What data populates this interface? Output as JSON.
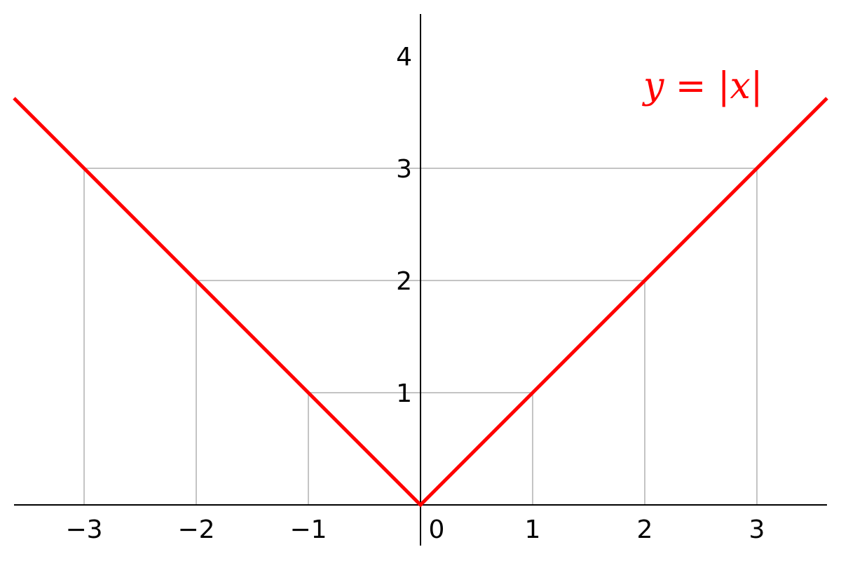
{
  "chart_data": {
    "type": "line",
    "title": "",
    "xlabel": "",
    "ylabel": "",
    "xlim": [
      -3.625,
      3.625
    ],
    "ylim": [
      -0.3625,
      4.375
    ],
    "x_ticks": [
      -3,
      -2,
      -1,
      0,
      1,
      2,
      3
    ],
    "x_tick_labels": [
      "−3",
      "−2",
      "−1",
      "0",
      "1",
      "2",
      "3"
    ],
    "y_ticks": [
      1,
      2,
      3,
      4
    ],
    "y_tick_labels": [
      "1",
      "2",
      "3",
      "4"
    ],
    "grid": "guide lines from axes to points (±1,1), (±2,2), (±3,3)",
    "series": [
      {
        "x": [
          -3.625,
          0,
          3.625
        ],
        "y": [
          3.625,
          0,
          3.625
        ],
        "color": "#ff0000"
      }
    ],
    "annotation": "y = |x|",
    "axes_style": "spines through origin",
    "colors": {
      "line": "#ff0000",
      "guide": "#b0b0b0",
      "axis": "#000000"
    }
  }
}
